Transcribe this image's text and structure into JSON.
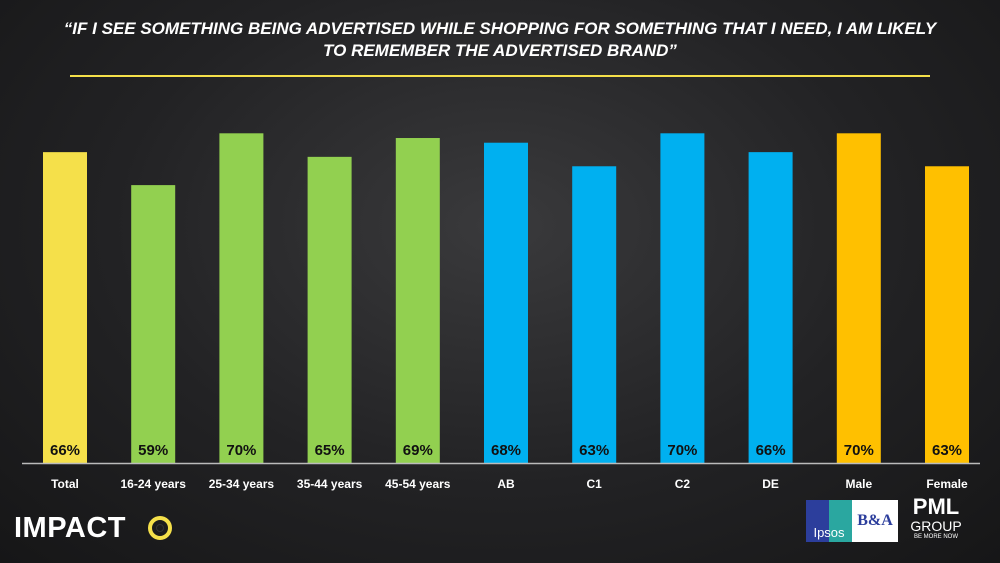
{
  "title": "“IF I SEE SOMETHING BEING ADVERTISED WHILE SHOPPING FOR SOMETHING THAT I NEED, I AM LIKELY TO REMEMBER THE ADVERTISED BRAND”",
  "footer": {
    "brand": "IMPACT",
    "logo_ipsos": "Ipsos",
    "logo_ba": "B&A",
    "logo_pml": "PML",
    "logo_group": "GROUP",
    "logo_tagline": "BE MORE NOW"
  },
  "chart_data": {
    "type": "bar",
    "title": "“IF I SEE SOMETHING BEING ADVERTISED WHILE SHOPPING FOR SOMETHING THAT I NEED, I AM LIKELY TO REMEMBER THE ADVERTISED BRAND”",
    "categories": [
      "Total",
      "16-24 years",
      "25-34 years",
      "35-44 years",
      "45-54 years",
      "AB",
      "C1",
      "C2",
      "DE",
      "Male",
      "Female"
    ],
    "values": [
      66,
      59,
      70,
      65,
      69,
      68,
      63,
      70,
      66,
      70,
      63
    ],
    "labels": [
      "66%",
      "59%",
      "70%",
      "65%",
      "69%",
      "68%",
      "63%",
      "70%",
      "66%",
      "70%",
      "63%"
    ],
    "colors": [
      "#f5e04a",
      "#92d050",
      "#92d050",
      "#92d050",
      "#92d050",
      "#00b0f0",
      "#00b0f0",
      "#00b0f0",
      "#00b0f0",
      "#ffc000",
      "#ffc000"
    ],
    "unit": "%",
    "ylim": [
      0,
      100
    ],
    "grid": false,
    "xlabel": "",
    "ylabel": ""
  }
}
